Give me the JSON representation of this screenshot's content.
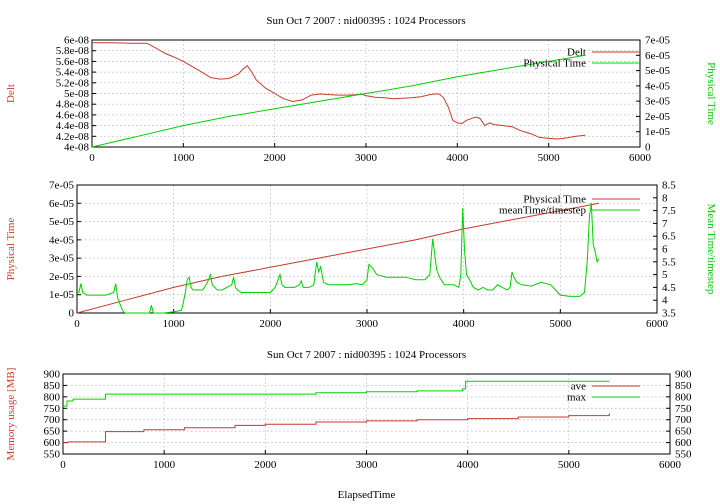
{
  "colors": {
    "red": "#c43c2c",
    "green": "#00d000",
    "grid": "#b0b0b0"
  },
  "chart_data": [
    {
      "type": "line",
      "title": "Sun Oct 7 2007 : nid00395 : 1024 Processors",
      "xlabel": "",
      "xlim": [
        0,
        6000
      ],
      "xticks": [
        "0",
        "1000",
        "2000",
        "3000",
        "4000",
        "5000",
        "6000"
      ],
      "y1label": "Delt",
      "y1lim": [
        4e-08,
        6e-08
      ],
      "y1ticks": [
        "4e-08",
        "4.2e-08",
        "4.4e-08",
        "4.6e-08",
        "4.8e-08",
        "5e-08",
        "5.2e-08",
        "5.4e-08",
        "5.6e-08",
        "5.8e-08",
        "6e-08"
      ],
      "y2label": "Physical Time",
      "y2lim": [
        0,
        7e-05
      ],
      "y2ticks": [
        "0",
        "1e-05",
        "2e-05",
        "3e-05",
        "4e-05",
        "5e-05",
        "6e-05",
        "7e-05"
      ],
      "grid": true,
      "legend": "top-right",
      "series": [
        {
          "name": "Delt",
          "axis": "y1",
          "color": "red",
          "x": [
            0,
            200,
            400,
            600,
            700,
            800,
            900,
            1000,
            1100,
            1200,
            1300,
            1400,
            1500,
            1600,
            1650,
            1700,
            1750,
            1800,
            1900,
            2000,
            2100,
            2200,
            2300,
            2400,
            2500,
            2600,
            2700,
            2800,
            2900,
            2950,
            3000,
            3100,
            3200,
            3300,
            3400,
            3500,
            3600,
            3700,
            3750,
            3800,
            3850,
            3900,
            3950,
            4000,
            4050,
            4100,
            4200,
            4250,
            4300,
            4350,
            4400,
            4500,
            4600,
            4700,
            4800,
            4900,
            5000,
            5100,
            5200,
            5300,
            5400
          ],
          "y": [
            5.95e-08,
            5.95e-08,
            5.94e-08,
            5.94e-08,
            5.85e-08,
            5.75e-08,
            5.68e-08,
            5.6e-08,
            5.5e-08,
            5.4e-08,
            5.3e-08,
            5.27e-08,
            5.28e-08,
            5.36e-08,
            5.45e-08,
            5.52e-08,
            5.4e-08,
            5.25e-08,
            5.1e-08,
            5e-08,
            4.9e-08,
            4.85e-08,
            4.88e-08,
            4.97e-08,
            4.99e-08,
            4.98e-08,
            4.97e-08,
            4.97e-08,
            4.98e-08,
            4.99e-08,
            4.96e-08,
            4.93e-08,
            4.92e-08,
            4.9e-08,
            4.91e-08,
            4.92e-08,
            4.94e-08,
            4.98e-08,
            4.99e-08,
            4.99e-08,
            4.92e-08,
            4.75e-08,
            4.5e-08,
            4.45e-08,
            4.44e-08,
            4.5e-08,
            4.56e-08,
            4.53e-08,
            4.4e-08,
            4.45e-08,
            4.42e-08,
            4.4e-08,
            4.38e-08,
            4.3e-08,
            4.25e-08,
            4.18e-08,
            4.16e-08,
            4.15e-08,
            4.17e-08,
            4.2e-08,
            4.22e-08
          ]
        },
        {
          "name": "Physical Time",
          "axis": "y2",
          "color": "green",
          "x": [
            0,
            500,
            1000,
            1500,
            2000,
            2500,
            3000,
            3500,
            4000,
            4500,
            5000,
            5400
          ],
          "y": [
            0,
            7e-06,
            1.4e-05,
            2e-05,
            2.5e-05,
            3e-05,
            3.5e-05,
            4e-05,
            4.6e-05,
            5.1e-05,
            5.6e-05,
            6e-05
          ]
        }
      ]
    },
    {
      "type": "line",
      "title": "",
      "xlabel": "",
      "xlim": [
        0,
        6000
      ],
      "xticks": [
        "0",
        "1000",
        "2000",
        "3000",
        "4000",
        "5000",
        "6000"
      ],
      "y1label": "Physical Time",
      "y1lim": [
        0,
        7e-05
      ],
      "y1ticks": [
        "0",
        "1e-05",
        "2e-05",
        "3e-05",
        "4e-05",
        "5e-05",
        "6e-05",
        "7e-05"
      ],
      "y2label": "Mean Time/timestep",
      "y2lim": [
        3.5,
        8.5
      ],
      "y2ticks": [
        "3.5",
        "4",
        "4.5",
        "5",
        "5.5",
        "6",
        "6.5",
        "7",
        "7.5",
        "8",
        "8.5"
      ],
      "grid": true,
      "legend": "top-right",
      "series": [
        {
          "name": "Physical Time",
          "axis": "y1",
          "color": "red",
          "x": [
            0,
            500,
            1000,
            1500,
            2000,
            2500,
            3000,
            3500,
            4000,
            4500,
            5000,
            5400
          ],
          "y": [
            0,
            7e-06,
            1.4e-05,
            2e-05,
            2.5e-05,
            3e-05,
            3.5e-05,
            4e-05,
            4.6e-05,
            5.1e-05,
            5.6e-05,
            6e-05
          ]
        },
        {
          "name": "meanTime/timestep",
          "axis": "y2",
          "color": "green",
          "x": [
            0,
            20,
            40,
            60,
            100,
            200,
            300,
            380,
            400,
            420,
            440,
            460,
            480,
            500,
            600,
            700,
            750,
            770,
            790,
            820,
            900,
            1000,
            1080,
            1100,
            1120,
            1140,
            1160,
            1180,
            1200,
            1300,
            1350,
            1380,
            1400,
            1450,
            1500,
            1550,
            1600,
            1620,
            1640,
            1660,
            1700,
            1800,
            1900,
            2000,
            2050,
            2080,
            2100,
            2120,
            2150,
            2200,
            2250,
            2300,
            2320,
            2340,
            2400,
            2450,
            2480,
            2500,
            2520,
            2550,
            2600,
            2650,
            2700,
            2800,
            2900,
            2950,
            3000,
            3020,
            3050,
            3100,
            3200,
            3300,
            3400,
            3500,
            3550,
            3600,
            3650,
            3680,
            3700,
            3720,
            3750,
            3800,
            3900,
            3950,
            3970,
            3990,
            4010,
            4030,
            4060,
            4100,
            4150,
            4200,
            4250,
            4300,
            4350,
            4400,
            4450,
            4480,
            4500,
            4520,
            4550,
            4600,
            4700,
            4800,
            4900,
            4950,
            5000,
            5100,
            5200,
            5250,
            5280,
            5300,
            5320,
            5340,
            5360,
            5380,
            5400
          ],
          "y": [
            4.3,
            4.3,
            4.65,
            4.3,
            4.2,
            4.2,
            4.2,
            4.3,
            4.65,
            4.1,
            3.9,
            3.7,
            3.55,
            3.5,
            3.5,
            3.5,
            3.5,
            3.8,
            3.5,
            3.5,
            3.5,
            3.55,
            3.6,
            3.9,
            4.3,
            4.8,
            4.9,
            4.5,
            4.4,
            4.4,
            4.7,
            5.0,
            4.6,
            4.4,
            4.4,
            4.5,
            4.6,
            4.9,
            4.5,
            4.4,
            4.3,
            4.3,
            4.3,
            4.3,
            4.5,
            4.8,
            5.0,
            4.6,
            4.5,
            4.5,
            4.5,
            4.6,
            4.75,
            4.5,
            4.5,
            4.6,
            5.5,
            5.1,
            5.3,
            4.7,
            4.6,
            4.6,
            4.6,
            4.6,
            4.65,
            4.6,
            4.8,
            5.4,
            5.3,
            5.0,
            4.9,
            4.9,
            4.9,
            4.8,
            4.8,
            4.8,
            5.0,
            6.4,
            5.8,
            5.2,
            4.9,
            4.6,
            4.6,
            4.5,
            5.0,
            7.6,
            5.9,
            5.0,
            4.8,
            4.5,
            4.4,
            4.5,
            4.4,
            4.4,
            4.6,
            4.5,
            4.4,
            4.5,
            5.1,
            4.9,
            4.7,
            4.6,
            4.55,
            4.7,
            4.6,
            4.4,
            4.2,
            4.15,
            4.15,
            4.3,
            5.6,
            7.2,
            7.8,
            6.2,
            5.9,
            5.5,
            5.6
          ]
        }
      ]
    },
    {
      "type": "line",
      "title": "Sun Oct 7 2007 : nid00395 : 1024 Processors",
      "xlabel": "ElapsedTime",
      "xlim": [
        0,
        6000
      ],
      "xticks": [
        "0",
        "1000",
        "2000",
        "3000",
        "4000",
        "5000",
        "6000"
      ],
      "y1label": "Memory usage [MB]",
      "y1lim": [
        550,
        900
      ],
      "y1ticks": [
        "550",
        "600",
        "650",
        "700",
        "750",
        "800",
        "850",
        "900"
      ],
      "y2label": "",
      "y2lim": [
        550,
        900
      ],
      "y2ticks": [
        "550",
        "600",
        "650",
        "700",
        "750",
        "800",
        "850",
        "900"
      ],
      "grid": true,
      "legend": "top-right",
      "series": [
        {
          "name": "ave",
          "axis": "y1",
          "color": "red",
          "step": true,
          "x": [
            0,
            50,
            420,
            800,
            1200,
            1700,
            2000,
            2500,
            3000,
            3500,
            4000,
            4500,
            5000,
            5400
          ],
          "y": [
            600,
            603,
            648,
            656,
            665,
            675,
            680,
            690,
            695,
            700,
            705,
            712,
            718,
            728
          ]
        },
        {
          "name": "max",
          "axis": "y1",
          "color": "green",
          "step": true,
          "x": [
            0,
            40,
            100,
            420,
            800,
            2500,
            3000,
            3500,
            3950,
            3980,
            4500,
            5000,
            5400
          ],
          "y": [
            760,
            782,
            790,
            812,
            812,
            818,
            822,
            826,
            835,
            868,
            868,
            868,
            868
          ]
        }
      ]
    }
  ]
}
